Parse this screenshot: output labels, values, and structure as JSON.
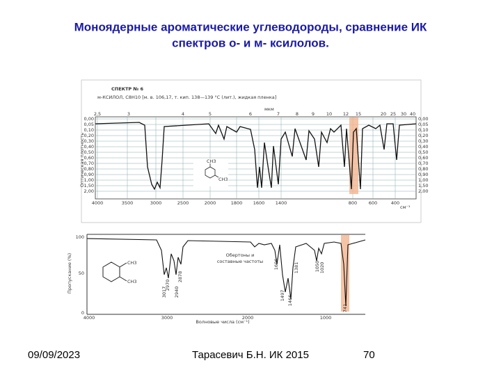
{
  "header": {
    "title_line1": "Моноядерные ароматические углеводороды, сравнение ИК",
    "title_line2": "спектров  о- и м- ксилолов."
  },
  "spectrum_top": {
    "heading": "СПЕКТР № 6",
    "caption": "м-КСИЛОЛ, C8H10 [м. в. 106,17, т. кип. 138—139 °С (лит.), жидкая пленка]",
    "micron_label": "мкм",
    "micron_ticks": [
      "2,5",
      "3",
      "4",
      "5",
      "6",
      "7",
      "8",
      "9",
      "10",
      "12",
      "15",
      "20",
      "25",
      "30",
      "40"
    ],
    "y_label": "Оптическая плотность",
    "y_ticks": [
      "0,00",
      "0,05",
      "0,10",
      "0,20",
      "0,30",
      "0,40",
      "0,50",
      "0,60",
      "0,70",
      "0,80",
      "0,90",
      "1,00",
      "1,50",
      "2,00"
    ],
    "x_ticks": [
      "4000",
      "3500",
      "3000",
      "2500",
      "2000",
      "1800",
      "1600",
      "1400",
      "800",
      "600",
      "400"
    ],
    "x_label": "см⁻¹",
    "substituent_labels": [
      "CH3",
      "CH3"
    ]
  },
  "spectrum_bottom": {
    "y_label": "Пропускание (%)",
    "y_ticks": [
      "100",
      "50",
      "0"
    ],
    "x_ticks": [
      "4000",
      "3000",
      "2000",
      "1000"
    ],
    "x_label": "Волновые числа (см⁻¹)",
    "annotation_line1": "Обертоны и",
    "annotation_line2": "составные частоты",
    "peak_labels": [
      "3017",
      "2970",
      "2940",
      "2878",
      "1606",
      "1497",
      "1466",
      "1381",
      "1050",
      "1020",
      "741"
    ],
    "substituent_labels": [
      "CH3",
      "CH3"
    ]
  },
  "footer": {
    "date": "09/09/2023",
    "author": "Тарасевич Б.Н.  ИК 2015",
    "page": "70"
  }
}
